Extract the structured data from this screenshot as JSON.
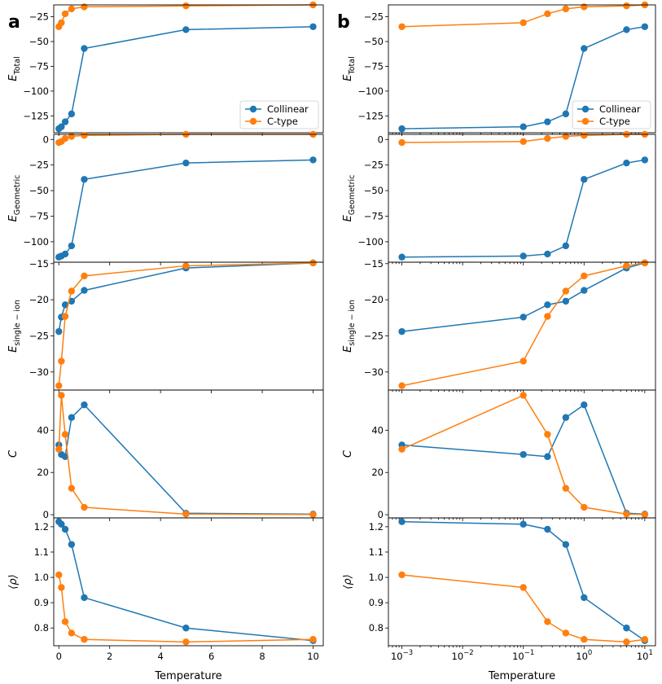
{
  "figure": {
    "panel_labels": [
      "a",
      "b"
    ],
    "legend": {
      "entries": [
        "Collinear",
        "C-type"
      ],
      "placement": "lower-right (top row)"
    },
    "colors": {
      "Collinear": "#1f77b4",
      "C-type": "#ff7f0e"
    },
    "xlabel": "Temperature"
  },
  "chart_data": [
    {
      "type": "line",
      "columns": [
        {
          "panel": "a",
          "xscale": "linear",
          "xlim": [
            -0.2,
            10.4
          ],
          "xticks": [
            0,
            2,
            4,
            6,
            8,
            10
          ],
          "xticklabels": [
            "0",
            "2",
            "4",
            "6",
            "8",
            "10"
          ]
        },
        {
          "panel": "b",
          "xscale": "log",
          "xlim": [
            0.0006,
            15
          ],
          "xticks": [
            0.001,
            0.01,
            0.1,
            1,
            10
          ],
          "xticklabels": [
            "10",
            "10",
            "10",
            "10",
            "10"
          ],
          "xtick_exponents": [
            "−3",
            "−2",
            "−1",
            "0",
            "1"
          ]
        }
      ],
      "x": [
        0.001,
        0.1,
        0.25,
        0.5,
        1,
        5,
        10
      ],
      "xlabel": "Temperature",
      "rows": [
        {
          "ylabel_main": "E",
          "ylabel_sub": "Total",
          "ylim": [
            -142,
            -13
          ],
          "yticks": [
            -125,
            -100,
            -75,
            -50,
            -25
          ],
          "yticklabels": [
            "−125",
            "−100",
            "−75",
            "−50",
            "−25"
          ],
          "series": [
            {
              "name": "Collinear",
              "values": [
                -138,
                -136,
                -131,
                -123,
                -57,
                -38,
                -35
              ]
            },
            {
              "name": "C-type",
              "values": [
                -35,
                -31,
                -22,
                -17,
                -15,
                -14,
                -13
              ]
            }
          ],
          "show_legend": true
        },
        {
          "ylabel_main": "E",
          "ylabel_sub": "Geometric",
          "ylim": [
            -120,
            5
          ],
          "yticks": [
            -100,
            -75,
            -50,
            -25,
            0
          ],
          "yticklabels": [
            "−100",
            "−75",
            "−50",
            "−25",
            "0"
          ],
          "series": [
            {
              "name": "Collinear",
              "values": [
                -115,
                -114,
                -112,
                -104,
                -39,
                -23,
                -20
              ]
            },
            {
              "name": "C-type",
              "values": [
                -3,
                -2,
                1,
                3,
                4,
                5,
                5
              ]
            }
          ]
        },
        {
          "ylabel_main": "E",
          "ylabel_sub": "single − ion",
          "ylim": [
            -32.5,
            -14.8
          ],
          "yticks": [
            -30,
            -25,
            -20,
            -15
          ],
          "yticklabels": [
            "−30",
            "−25",
            "−20",
            "−15"
          ],
          "series": [
            {
              "name": "Collinear",
              "values": [
                -24.4,
                -22.4,
                -20.7,
                -20.2,
                -18.7,
                -15.6,
                -14.9
              ]
            },
            {
              "name": "C-type",
              "values": [
                -31.9,
                -28.5,
                -22.3,
                -18.8,
                -16.7,
                -15.3,
                -14.9
              ]
            }
          ]
        },
        {
          "ylabel_main": "C",
          "ylabel_sub": "",
          "ylim": [
            -1.5,
            59
          ],
          "yticks": [
            0,
            20,
            40
          ],
          "yticklabels": [
            "0",
            "20",
            "40"
          ],
          "series": [
            {
              "name": "Collinear",
              "values": [
                33,
                28.5,
                27.5,
                46,
                52,
                0.7,
                0.3
              ]
            },
            {
              "name": "C-type",
              "values": [
                31,
                56.5,
                38,
                12.5,
                3.5,
                0.3,
                0.1
              ]
            }
          ]
        },
        {
          "ylabel_main": "⟨ρ⟩",
          "ylabel_sub": "",
          "ylim": [
            0.73,
            1.235
          ],
          "yticks": [
            0.8,
            0.9,
            1.0,
            1.1,
            1.2
          ],
          "yticklabels": [
            "0.8",
            "0.9",
            "1.0",
            "1.1",
            "1.2"
          ],
          "series": [
            {
              "name": "Collinear",
              "values": [
                1.22,
                1.21,
                1.19,
                1.13,
                0.92,
                0.8,
                0.75
              ]
            },
            {
              "name": "C-type",
              "values": [
                1.01,
                0.96,
                0.825,
                0.78,
                0.755,
                0.745,
                0.755
              ]
            }
          ]
        }
      ]
    }
  ]
}
